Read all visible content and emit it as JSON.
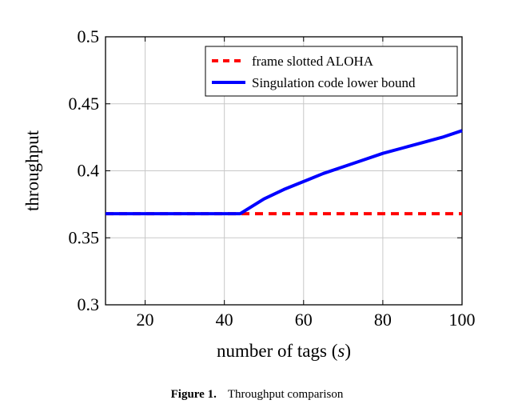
{
  "chart_data": {
    "type": "line",
    "xlabel_text": "number of tags (",
    "xlabel_var": "s",
    "xlabel_close": ")",
    "ylabel": "throughput",
    "xlim": [
      10,
      100
    ],
    "ylim": [
      0.3,
      0.5
    ],
    "xticks": [
      20,
      40,
      60,
      80,
      100
    ],
    "yticks": [
      0.3,
      0.35,
      0.4,
      0.45,
      0.5
    ],
    "ytick_labels": [
      "0.3",
      "0.35",
      "0.4",
      "0.45",
      "0.5"
    ],
    "grid": true,
    "legend_position": "top-right",
    "series": [
      {
        "name": "frame slotted ALOHA",
        "color": "#ff0000",
        "style": "dashed",
        "x": [
          10,
          100
        ],
        "y": [
          0.368,
          0.368
        ]
      },
      {
        "name": "Singulation code lower bound",
        "color": "#0000ff",
        "style": "solid",
        "x": [
          10,
          44,
          50,
          55,
          60,
          65,
          70,
          75,
          80,
          85,
          90,
          95,
          100
        ],
        "y": [
          0.368,
          0.368,
          0.379,
          0.386,
          0.392,
          0.398,
          0.403,
          0.408,
          0.413,
          0.417,
          0.421,
          0.425,
          0.43
        ]
      }
    ]
  },
  "caption": {
    "number": "Figure 1.",
    "text": "Throughput comparison"
  }
}
